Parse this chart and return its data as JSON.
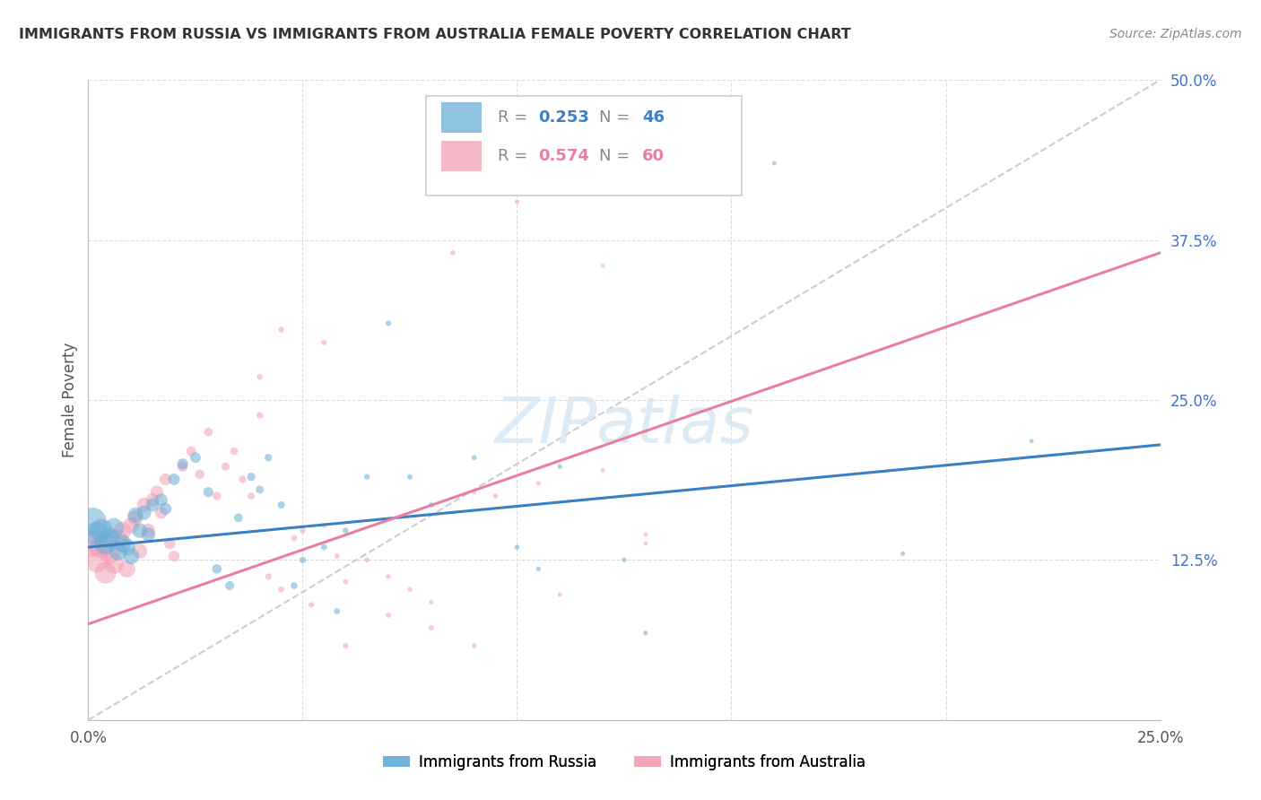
{
  "title": "IMMIGRANTS FROM RUSSIA VS IMMIGRANTS FROM AUSTRALIA FEMALE POVERTY CORRELATION CHART",
  "source": "Source: ZipAtlas.com",
  "ylabel": "Female Poverty",
  "xlim": [
    0.0,
    0.25
  ],
  "ylim": [
    0.0,
    0.5
  ],
  "xticks": [
    0.0,
    0.05,
    0.1,
    0.15,
    0.2,
    0.25
  ],
  "yticks": [
    0.0,
    0.125,
    0.25,
    0.375,
    0.5
  ],
  "russia_R": 0.253,
  "russia_N": 46,
  "australia_R": 0.574,
  "australia_N": 60,
  "russia_color": "#6aaed6",
  "australia_color": "#f4a0b5",
  "russia_line_color": "#3b7fc4",
  "australia_line_color": "#e87fa0",
  "diagonal_color": "#c8c8c8",
  "background_color": "#ffffff",
  "grid_color": "#dddddd",
  "russia_x": [
    0.001,
    0.002,
    0.003,
    0.004,
    0.005,
    0.006,
    0.007,
    0.008,
    0.009,
    0.01,
    0.011,
    0.012,
    0.013,
    0.014,
    0.015,
    0.017,
    0.018,
    0.02,
    0.022,
    0.025,
    0.028,
    0.03,
    0.033,
    0.035,
    0.038,
    0.04,
    0.042,
    0.045,
    0.048,
    0.05,
    0.055,
    0.058,
    0.06,
    0.065,
    0.07,
    0.075,
    0.08,
    0.09,
    0.1,
    0.105,
    0.11,
    0.125,
    0.13,
    0.16,
    0.19,
    0.22
  ],
  "russia_y": [
    0.155,
    0.145,
    0.148,
    0.138,
    0.142,
    0.15,
    0.132,
    0.138,
    0.135,
    0.128,
    0.16,
    0.148,
    0.162,
    0.145,
    0.168,
    0.172,
    0.165,
    0.188,
    0.2,
    0.205,
    0.178,
    0.118,
    0.105,
    0.158,
    0.19,
    0.18,
    0.205,
    0.168,
    0.105,
    0.125,
    0.135,
    0.085,
    0.148,
    0.19,
    0.31,
    0.19,
    0.168,
    0.205,
    0.135,
    0.118,
    0.198,
    0.125,
    0.068,
    0.435,
    0.13,
    0.218
  ],
  "russia_size": [
    500,
    400,
    350,
    320,
    280,
    250,
    220,
    200,
    185,
    170,
    155,
    145,
    135,
    125,
    115,
    105,
    98,
    88,
    80,
    72,
    65,
    58,
    52,
    48,
    44,
    40,
    37,
    34,
    31,
    28,
    26,
    24,
    22,
    21,
    20,
    19,
    18,
    17,
    16,
    15,
    15,
    14,
    14,
    13,
    13,
    12
  ],
  "australia_x": [
    0.001,
    0.002,
    0.003,
    0.004,
    0.005,
    0.006,
    0.007,
    0.008,
    0.009,
    0.01,
    0.011,
    0.012,
    0.013,
    0.014,
    0.015,
    0.016,
    0.017,
    0.018,
    0.019,
    0.02,
    0.022,
    0.024,
    0.026,
    0.028,
    0.03,
    0.032,
    0.034,
    0.036,
    0.038,
    0.04,
    0.042,
    0.045,
    0.048,
    0.05,
    0.052,
    0.055,
    0.058,
    0.06,
    0.065,
    0.07,
    0.075,
    0.08,
    0.09,
    0.095,
    0.1,
    0.105,
    0.11,
    0.12,
    0.13,
    0.04,
    0.045,
    0.055,
    0.06,
    0.07,
    0.08,
    0.085,
    0.09,
    0.1,
    0.12,
    0.13
  ],
  "australia_y": [
    0.138,
    0.125,
    0.135,
    0.115,
    0.13,
    0.122,
    0.142,
    0.148,
    0.118,
    0.152,
    0.158,
    0.132,
    0.168,
    0.148,
    0.172,
    0.178,
    0.162,
    0.188,
    0.138,
    0.128,
    0.198,
    0.21,
    0.192,
    0.225,
    0.175,
    0.198,
    0.21,
    0.188,
    0.175,
    0.238,
    0.112,
    0.102,
    0.142,
    0.148,
    0.09,
    0.152,
    0.128,
    0.108,
    0.125,
    0.112,
    0.102,
    0.092,
    0.178,
    0.175,
    0.435,
    0.185,
    0.098,
    0.195,
    0.145,
    0.268,
    0.305,
    0.295,
    0.058,
    0.082,
    0.072,
    0.365,
    0.058,
    0.405,
    0.355,
    0.138
  ],
  "australia_size": [
    500,
    400,
    350,
    300,
    280,
    250,
    220,
    200,
    185,
    170,
    155,
    145,
    135,
    125,
    115,
    108,
    100,
    92,
    85,
    78,
    70,
    62,
    56,
    50,
    46,
    42,
    38,
    35,
    32,
    29,
    27,
    25,
    23,
    21,
    20,
    19,
    18,
    17,
    17,
    16,
    15,
    15,
    14,
    14,
    13,
    13,
    12,
    12,
    12,
    22,
    21,
    20,
    19,
    18,
    17,
    16,
    15,
    14,
    13,
    12
  ]
}
